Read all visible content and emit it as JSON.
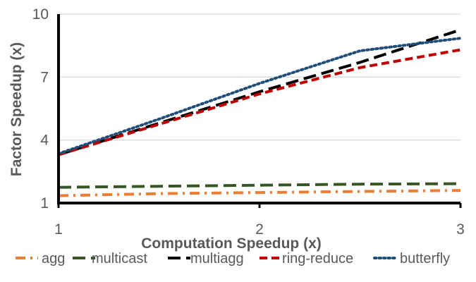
{
  "chart_data": {
    "type": "line",
    "title": "",
    "xlabel": "Computation Speedup (x)",
    "ylabel": "Factor Speedup (x)",
    "xlim": [
      1,
      3
    ],
    "ylim": [
      1,
      10
    ],
    "x_ticks": [
      "1",
      "2",
      "3"
    ],
    "y_ticks": [
      "1",
      "4",
      "7",
      "10"
    ],
    "grid": "horizontal",
    "legend_position": "bottom",
    "x": [
      1,
      1.5,
      2,
      2.5,
      3
    ],
    "series": [
      {
        "name": "agg",
        "color": "#ED7D31",
        "dash": "dash-dot",
        "values": [
          1.35,
          1.45,
          1.5,
          1.55,
          1.6
        ]
      },
      {
        "name": "multicast",
        "color": "#375623",
        "dash": "long-dash",
        "values": [
          1.75,
          1.8,
          1.85,
          1.9,
          1.92
        ]
      },
      {
        "name": "multiagg",
        "color": "#000000",
        "dash": "long-dash",
        "values": [
          3.3,
          4.8,
          6.3,
          7.7,
          9.25
        ]
      },
      {
        "name": "ring-reduce",
        "color": "#C00000",
        "dash": "dash",
        "values": [
          3.3,
          4.75,
          6.2,
          7.45,
          8.3
        ]
      },
      {
        "name": "butterfly",
        "color": "#1F4E79",
        "dash": "dot",
        "values": [
          3.35,
          5.0,
          6.7,
          8.25,
          8.85
        ]
      }
    ]
  }
}
